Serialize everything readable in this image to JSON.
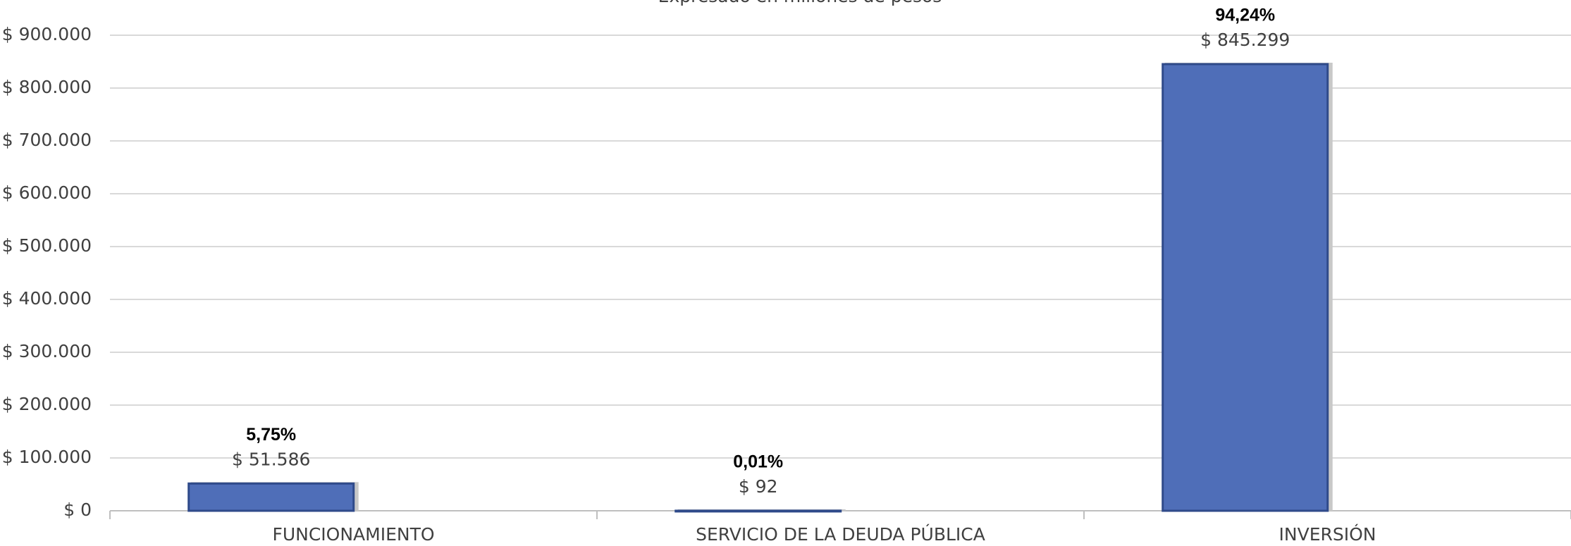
{
  "chart_data": {
    "type": "bar",
    "subtitle": "Expresado en millones de pesos",
    "categories": [
      "FUNCIONAMIENTO",
      "SERVICIO DE LA DEUDA PÚBLICA",
      "INVERSIÓN"
    ],
    "values": [
      51586,
      92,
      845299
    ],
    "value_labels": [
      "$ 51.586",
      "$ 92",
      "$ 845.299"
    ],
    "shares": [
      "5,75%",
      "0,01%",
      "94,24%"
    ],
    "color": "#4f6eb8",
    "ylim": [
      0,
      900000
    ],
    "yticks": [
      {
        "value": 0,
        "label": "$ 0"
      },
      {
        "value": 100000,
        "label": "$ 100.000"
      },
      {
        "value": 200000,
        "label": "$ 200.000"
      },
      {
        "value": 300000,
        "label": "$ 300.000"
      },
      {
        "value": 400000,
        "label": "$ 400.000"
      },
      {
        "value": 500000,
        "label": "$ 500.000"
      },
      {
        "value": 600000,
        "label": "$ 600.000"
      },
      {
        "value": 700000,
        "label": "$ 700.000"
      },
      {
        "value": 800000,
        "label": "$ 800.000"
      },
      {
        "value": 900000,
        "label": "$ 900.000"
      }
    ],
    "grid": true
  }
}
